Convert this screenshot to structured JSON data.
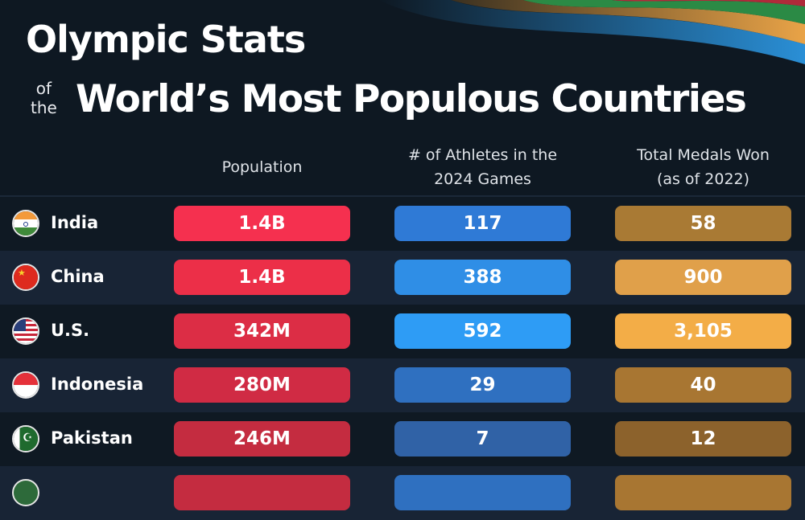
{
  "title_line1": "Olympic Stats",
  "title_of": "of",
  "title_the": "the",
  "title_line2": "World’s Most Populous Countries",
  "chart_data": {
    "type": "table",
    "columns": [
      "Population",
      "# of Athletes in the 2024 Games",
      "Total Medals Won (as of 2022)"
    ],
    "column_lines": [
      [
        "Population"
      ],
      [
        "# of Athletes in the",
        "2024 Games"
      ],
      [
        "Total Medals Won",
        "(as of 2022)"
      ]
    ],
    "rows": [
      {
        "country": "India",
        "population": "1.4B",
        "athletes": "117",
        "medals": "58",
        "colors": [
          "#f5304f",
          "#2f7ad6",
          "#a97a34"
        ]
      },
      {
        "country": "China",
        "population": "1.4B",
        "athletes": "388",
        "medals": "900",
        "colors": [
          "#ec2f48",
          "#2f8ee6",
          "#e0a04a"
        ]
      },
      {
        "country": "U.S.",
        "population": "342M",
        "athletes": "592",
        "medals": "3,105",
        "colors": [
          "#dc2d45",
          "#2e9cf5",
          "#f3ad47"
        ]
      },
      {
        "country": "Indonesia",
        "population": "280M",
        "athletes": "29",
        "medals": "40",
        "colors": [
          "#d02b44",
          "#2f70c0",
          "#a87632"
        ]
      },
      {
        "country": "Pakistan",
        "population": "246M",
        "athletes": "7",
        "medals": "12",
        "colors": [
          "#c42c40",
          "#3062a6",
          "#8c622c"
        ]
      }
    ]
  }
}
